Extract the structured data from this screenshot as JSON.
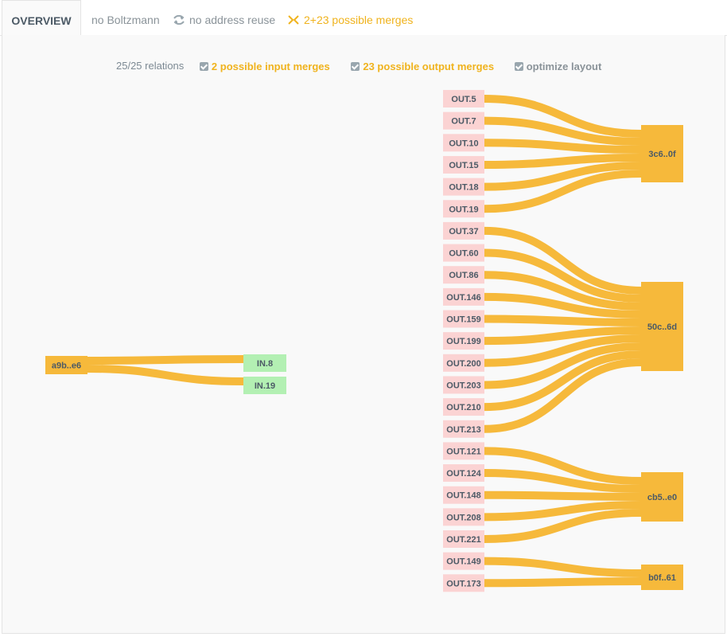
{
  "tabs": {
    "overview": "OVERVIEW",
    "boltzmann": "no Boltzmann",
    "address_reuse": "no address reuse",
    "merges": "2+23 possible merges"
  },
  "options": {
    "relations": "25/25 relations",
    "input_merges": "2 possible input merges",
    "output_merges": "23 possible output merges",
    "optimize": "optimize layout"
  },
  "colors": {
    "link": "#f6b93b",
    "input": "#b3f0b3",
    "output": "#fbd3d3",
    "cluster": "#f6b93b",
    "accent": "#f0b31d"
  },
  "graph": {
    "source": "a9b..e6",
    "inputs": [
      "IN.8",
      "IN.19"
    ],
    "outputs": [
      "OUT.5",
      "OUT.7",
      "OUT.10",
      "OUT.15",
      "OUT.18",
      "OUT.19",
      "OUT.37",
      "OUT.60",
      "OUT.86",
      "OUT.146",
      "OUT.159",
      "OUT.199",
      "OUT.200",
      "OUT.203",
      "OUT.210",
      "OUT.213",
      "OUT.121",
      "OUT.124",
      "OUT.148",
      "OUT.208",
      "OUT.221",
      "OUT.149",
      "OUT.173"
    ],
    "clusters": [
      {
        "label": "3c6..0f",
        "count": 6
      },
      {
        "label": "50c..6d",
        "count": 10
      },
      {
        "label": "cb5..e0",
        "count": 5
      },
      {
        "label": "b0f..61",
        "count": 2
      }
    ]
  }
}
